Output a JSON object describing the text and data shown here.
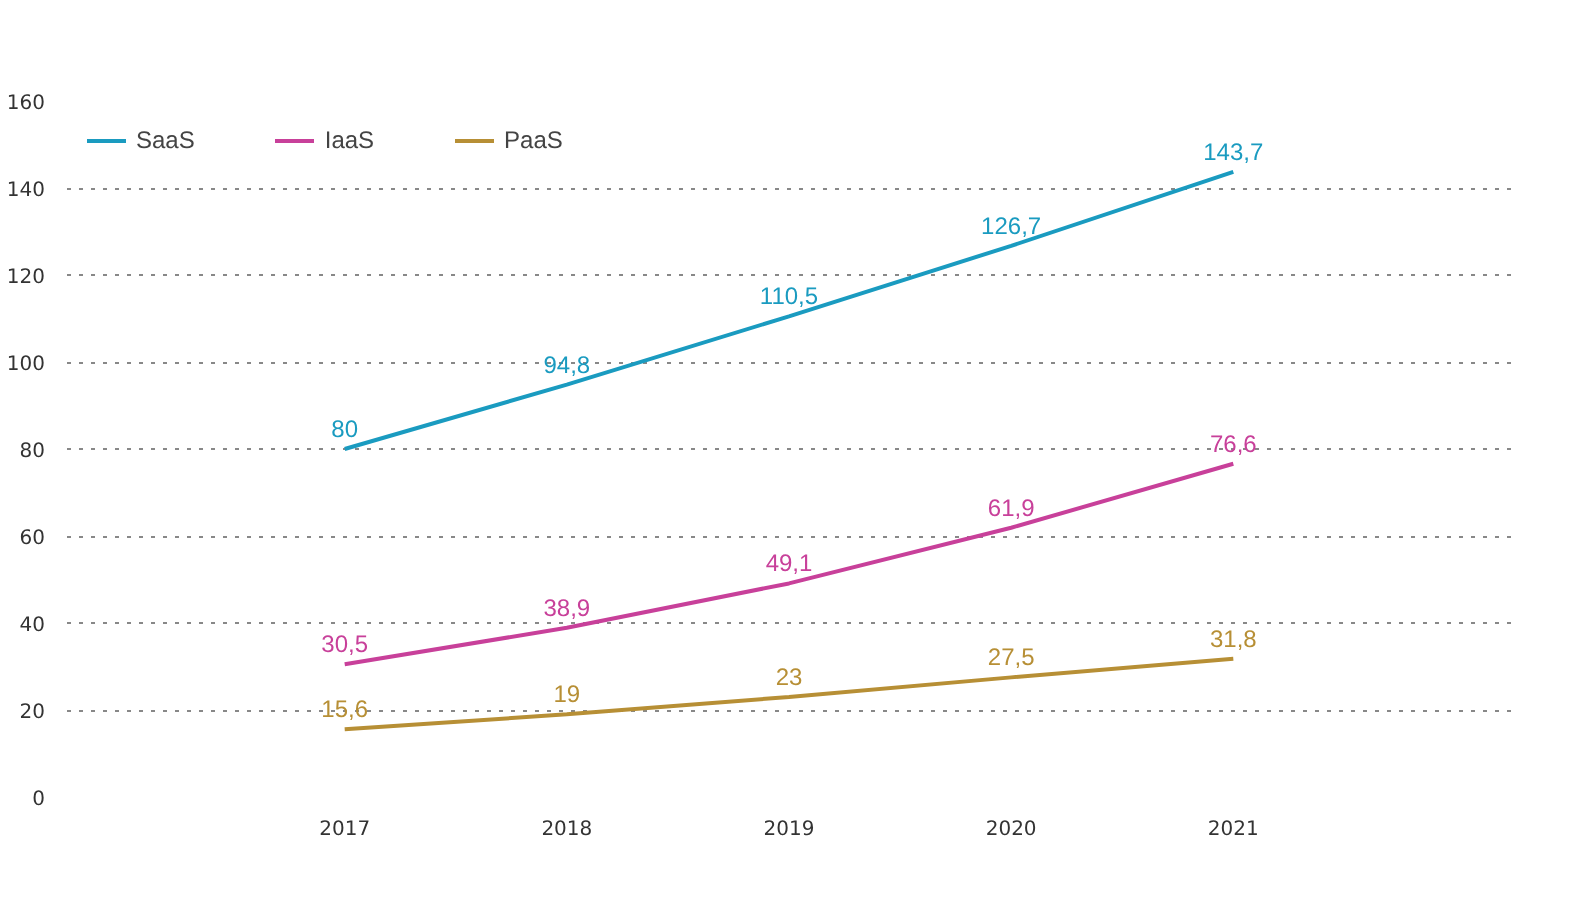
{
  "chart_data": {
    "type": "line",
    "categories": [
      "2017",
      "2018",
      "2019",
      "2020",
      "2021"
    ],
    "series": [
      {
        "name": "SaaS",
        "color": "#1a9bc0",
        "values": [
          80,
          94.8,
          110.5,
          126.7,
          143.7
        ],
        "value_labels": [
          "80",
          "94,8",
          "110,5",
          "126,7",
          "143,7"
        ]
      },
      {
        "name": "IaaS",
        "color": "#c8409a",
        "values": [
          30.5,
          38.9,
          49.1,
          61.9,
          76.6
        ],
        "value_labels": [
          "30,5",
          "38,9",
          "49,1",
          "61,9",
          "76,6"
        ]
      },
      {
        "name": "PaaS",
        "color": "#b78f35",
        "values": [
          15.6,
          19,
          23,
          27.5,
          31.8
        ],
        "value_labels": [
          "15,6",
          "19",
          "23",
          "27,5",
          "31,8"
        ]
      }
    ],
    "ylim": [
      0,
      160
    ],
    "yticks": [
      0,
      20,
      40,
      60,
      80,
      100,
      120,
      140,
      160
    ],
    "grid": "y",
    "legend": "top left",
    "marker": "none",
    "line_style": "solid"
  }
}
